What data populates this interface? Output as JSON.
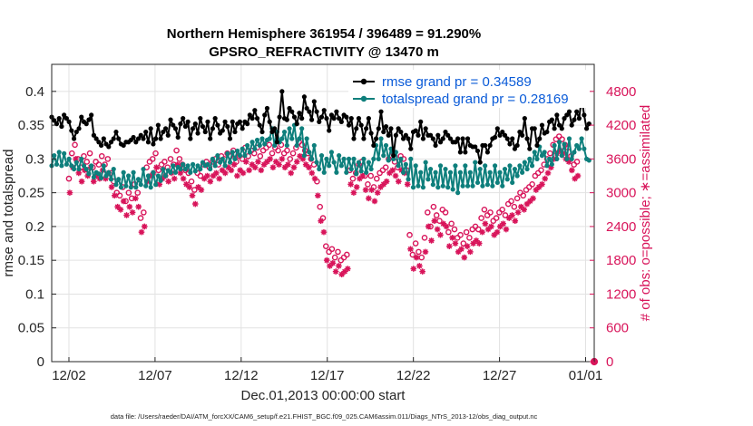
{
  "chart_data": {
    "type": "line",
    "title_line1": "Northern Hemisphere 361954 / 396489 = 91.290%",
    "title_line2": "GPSRO_REFRACTIVITY @ 13470 m",
    "xlabel": "Dec.01,2013 00:00:00 start",
    "ylabel": "rmse and totalspread",
    "ylabel_right": "# of obs: o=possible; ∗=assimilated",
    "footer": "data file: /Users/raeder/DAI/ATM_forcXX/CAM6_setup/f.e21.FHIST_BGC.f09_025.CAM6assim.011/Diags_NTrS_2013-12/obs_diag_output.nc",
    "xlim": [
      0,
      31.5
    ],
    "ylim": [
      0,
      0.44
    ],
    "ylim_right": [
      0,
      5280
    ],
    "x_ticks": [
      {
        "pos": 1,
        "label": "12/02"
      },
      {
        "pos": 6,
        "label": "12/07"
      },
      {
        "pos": 11,
        "label": "12/12"
      },
      {
        "pos": 16,
        "label": "12/17"
      },
      {
        "pos": 21,
        "label": "12/22"
      },
      {
        "pos": 26,
        "label": "12/27"
      },
      {
        "pos": 31,
        "label": "01/01"
      }
    ],
    "y_ticks": [
      "0",
      "0.05",
      "0.1",
      "0.15",
      "0.2",
      "0.25",
      "0.3",
      "0.35",
      "0.4"
    ],
    "y_tick_values": [
      0,
      0.05,
      0.1,
      0.15,
      0.2,
      0.25,
      0.3,
      0.35,
      0.4
    ],
    "y_right_ticks": [
      "0",
      "600",
      "1200",
      "1800",
      "2400",
      "3000",
      "3600",
      "4200",
      "4800"
    ],
    "y_right_tick_values": [
      0,
      600,
      1200,
      1800,
      2400,
      3000,
      3600,
      4200,
      4800
    ],
    "grid": true,
    "legend_position": "top-right",
    "series": [
      {
        "name": "rmse grand pr = 0.34589",
        "color": "#000000",
        "values": [
          0.362,
          0.357,
          0.352,
          0.36,
          0.348,
          0.365,
          0.36,
          0.355,
          0.342,
          0.33,
          0.34,
          0.345,
          0.362,
          0.355,
          0.352,
          0.358,
          0.365,
          0.335,
          0.33,
          0.325,
          0.32,
          0.33,
          0.322,
          0.318,
          0.325,
          0.33,
          0.34,
          0.33,
          0.322,
          0.32,
          0.325,
          0.325,
          0.328,
          0.332,
          0.325,
          0.33,
          0.335,
          0.33,
          0.34,
          0.325,
          0.345,
          0.322,
          0.33,
          0.35,
          0.33,
          0.34,
          0.345,
          0.335,
          0.358,
          0.35,
          0.345,
          0.332,
          0.352,
          0.36,
          0.348,
          0.355,
          0.33,
          0.345,
          0.352,
          0.338,
          0.36,
          0.348,
          0.34,
          0.355,
          0.33,
          0.345,
          0.36,
          0.35,
          0.338,
          0.342,
          0.355,
          0.348,
          0.33,
          0.355,
          0.34,
          0.352,
          0.355,
          0.345,
          0.355,
          0.352,
          0.365,
          0.36,
          0.372,
          0.36,
          0.35,
          0.34,
          0.365,
          0.375,
          0.355,
          0.34,
          0.345,
          0.325,
          0.362,
          0.4,
          0.36,
          0.358,
          0.375,
          0.37,
          0.362,
          0.352,
          0.368,
          0.36,
          0.392,
          0.375,
          0.37,
          0.358,
          0.385,
          0.37,
          0.355,
          0.362,
          0.372,
          0.36,
          0.342,
          0.365,
          0.36,
          0.37,
          0.36,
          0.355,
          0.365,
          0.362,
          0.35,
          0.36,
          0.33,
          0.345,
          0.36,
          0.35,
          0.33,
          0.345,
          0.36,
          0.338,
          0.32,
          0.33,
          0.345,
          0.37,
          0.34,
          0.348,
          0.335,
          0.345,
          0.305,
          0.335,
          0.345,
          0.34,
          0.33,
          0.335,
          0.33,
          0.315,
          0.34,
          0.342,
          0.335,
          0.355,
          0.33,
          0.345,
          0.335,
          0.335,
          0.33,
          0.32,
          0.335,
          0.325,
          0.33,
          0.34,
          0.335,
          0.33,
          0.325,
          0.325,
          0.33,
          0.31,
          0.33,
          0.31,
          0.33,
          0.32,
          0.318,
          0.318,
          0.312,
          0.295,
          0.32,
          0.32,
          0.31,
          0.32,
          0.33,
          0.332,
          0.345,
          0.335,
          0.34,
          0.335,
          0.33,
          0.322,
          0.33,
          0.315,
          0.32,
          0.34,
          0.335,
          0.36,
          0.33,
          0.315,
          0.345,
          0.345,
          0.32,
          0.33,
          0.35,
          0.338,
          0.34,
          0.355,
          0.358,
          0.345,
          0.365,
          0.35,
          0.345,
          0.36,
          0.365,
          0.37,
          0.35,
          0.358,
          0.37,
          0.36,
          0.39,
          0.365,
          0.345,
          0.352
        ]
      },
      {
        "name": "totalspread grand pr = 0.28169",
        "color": "#0e7f7c",
        "values": [
          0.29,
          0.305,
          0.292,
          0.31,
          0.29,
          0.308,
          0.292,
          0.3,
          0.29,
          0.285,
          0.295,
          0.285,
          0.3,
          0.29,
          0.285,
          0.278,
          0.29,
          0.273,
          0.28,
          0.278,
          0.272,
          0.29,
          0.275,
          0.28,
          0.27,
          0.285,
          0.262,
          0.27,
          0.258,
          0.28,
          0.26,
          0.275,
          0.258,
          0.28,
          0.258,
          0.27,
          0.262,
          0.285,
          0.26,
          0.275,
          0.258,
          0.28,
          0.262,
          0.275,
          0.268,
          0.285,
          0.275,
          0.283,
          0.28,
          0.29,
          0.28,
          0.288,
          0.285,
          0.292,
          0.285,
          0.29,
          0.28,
          0.292,
          0.282,
          0.29,
          0.285,
          0.295,
          0.29,
          0.292,
          0.285,
          0.3,
          0.29,
          0.305,
          0.295,
          0.3,
          0.29,
          0.308,
          0.295,
          0.31,
          0.3,
          0.312,
          0.305,
          0.315,
          0.305,
          0.32,
          0.31,
          0.325,
          0.315,
          0.328,
          0.32,
          0.33,
          0.322,
          0.328,
          0.33,
          0.345,
          0.32,
          0.34,
          0.325,
          0.33,
          0.34,
          0.32,
          0.345,
          0.33,
          0.35,
          0.32,
          0.33,
          0.345,
          0.305,
          0.33,
          0.31,
          0.3,
          0.32,
          0.295,
          0.285,
          0.305,
          0.28,
          0.3,
          0.29,
          0.31,
          0.295,
          0.28,
          0.305,
          0.29,
          0.3,
          0.28,
          0.3,
          0.285,
          0.3,
          0.278,
          0.295,
          0.282,
          0.3,
          0.28,
          0.295,
          0.285,
          0.3,
          0.32,
          0.3,
          0.33,
          0.305,
          0.32,
          0.298,
          0.315,
          0.3,
          0.31,
          0.29,
          0.3,
          0.28,
          0.292,
          0.27,
          0.3,
          0.258,
          0.29,
          0.26,
          0.28,
          0.258,
          0.295,
          0.27,
          0.285,
          0.262,
          0.28,
          0.258,
          0.29,
          0.26,
          0.285,
          0.258,
          0.28,
          0.255,
          0.29,
          0.25,
          0.28,
          0.26,
          0.29,
          0.26,
          0.28,
          0.26,
          0.295,
          0.265,
          0.285,
          0.26,
          0.29,
          0.262,
          0.28,
          0.26,
          0.29,
          0.265,
          0.28,
          0.26,
          0.285,
          0.27,
          0.29,
          0.265,
          0.285,
          0.275,
          0.29,
          0.28,
          0.295,
          0.285,
          0.3,
          0.29,
          0.31,
          0.3,
          0.318,
          0.305,
          0.31,
          0.29,
          0.3,
          0.292,
          0.32,
          0.3,
          0.325,
          0.305,
          0.322,
          0.3,
          0.33,
          0.3,
          0.31,
          0.32,
          0.315,
          0.33,
          0.315,
          0.3,
          0.298
        ]
      },
      {
        "name": "possible",
        "color": "#d8145a",
        "values": [
          3250,
          3700,
          3850,
          3600,
          3450,
          3650,
          3550,
          3700,
          3450,
          3550,
          3500,
          3650,
          3500,
          3600,
          3350,
          3200,
          3000,
          2950,
          3100,
          2850,
          3000,
          2900,
          3150,
          3000,
          2550,
          2650,
          3450,
          3550,
          3600,
          3700,
          3400,
          3500,
          3550,
          3450,
          3600,
          3500,
          3750,
          3600,
          3500,
          3400,
          3350,
          3200,
          3050,
          3350,
          3300,
          3500,
          3550,
          3450,
          3550,
          3600,
          3500,
          3650,
          3600,
          3700,
          3650,
          3750,
          3550,
          3650,
          3600,
          3800,
          3650,
          3750,
          3700,
          3800,
          3650,
          3750,
          3800,
          3850,
          3700,
          3800,
          3750,
          3850,
          3700,
          3750,
          3600,
          3700,
          3800,
          3900,
          3850,
          3750,
          3700,
          3600,
          3500,
          3200,
          2750,
          2550,
          2050,
          1950,
          2000,
          1850,
          1950,
          1800,
          1850,
          1900,
          3400,
          3250,
          3350,
          3500,
          3550,
          3300,
          3150,
          3300,
          3100,
          3250,
          3350,
          3400,
          3450,
          3600,
          3650,
          3550,
          3450,
          3650,
          3600,
          3400,
          2250,
          1900,
          2100,
          1950,
          1850,
          2200,
          2650,
          2400,
          2750,
          2600,
          2500,
          2700,
          2650,
          2300,
          2450,
          2350,
          2200,
          2250,
          2100,
          2300,
          2200,
          2350,
          2400,
          2350,
          2550,
          2700,
          2600,
          2650,
          2500,
          2550,
          2650,
          2700,
          2600,
          2800,
          2850,
          2750,
          2900,
          3000,
          2950,
          3050,
          3100,
          3150,
          3300,
          3350,
          3400,
          3500,
          3600,
          3700,
          3850,
          3950,
          4000,
          3950,
          3850,
          3800,
          3650,
          3500,
          3550
        ]
      },
      {
        "name": "assimilated",
        "color": "#d8145a",
        "values": [
          3000,
          3450,
          3600,
          3350,
          3200,
          3400,
          3300,
          3450,
          3200,
          3300,
          3250,
          3400,
          3250,
          3350,
          3100,
          2950,
          2750,
          2700,
          2850,
          2600,
          2750,
          2650,
          2900,
          2750,
          2300,
          2400,
          3200,
          3300,
          3350,
          3450,
          3150,
          3250,
          3300,
          3200,
          3350,
          3250,
          3500,
          3350,
          3250,
          3150,
          3100,
          2950,
          2800,
          3100,
          3050,
          3250,
          3300,
          3200,
          3300,
          3350,
          3250,
          3400,
          3350,
          3450,
          3400,
          3500,
          3300,
          3400,
          3350,
          3550,
          3400,
          3500,
          3450,
          3550,
          3400,
          3500,
          3550,
          3600,
          3450,
          3550,
          3500,
          3600,
          3450,
          3500,
          3350,
          3450,
          3550,
          3650,
          3600,
          3500,
          3450,
          3350,
          3250,
          2950,
          2500,
          2300,
          1800,
          1700,
          1750,
          1600,
          1700,
          1550,
          1600,
          1650,
          3150,
          3000,
          3100,
          3250,
          3300,
          3050,
          2900,
          3050,
          2850,
          3000,
          3100,
          3150,
          3200,
          3350,
          3400,
          3300,
          3200,
          3400,
          3350,
          3150,
          2000,
          1650,
          1850,
          1700,
          1600,
          1950,
          2400,
          2150,
          2500,
          2350,
          2250,
          2450,
          2400,
          2050,
          2200,
          2100,
          1950,
          2000,
          1850,
          2050,
          1950,
          2100,
          2150,
          2100,
          2300,
          2450,
          2350,
          2400,
          2250,
          2300,
          2400,
          2450,
          2350,
          2550,
          2600,
          2500,
          2650,
          2750,
          2700,
          2800,
          2850,
          2900,
          3050,
          3100,
          3150,
          3250,
          3350,
          3450,
          3600,
          3700,
          3750,
          3700,
          3600,
          3550,
          3400,
          3250,
          3300
        ]
      }
    ]
  }
}
